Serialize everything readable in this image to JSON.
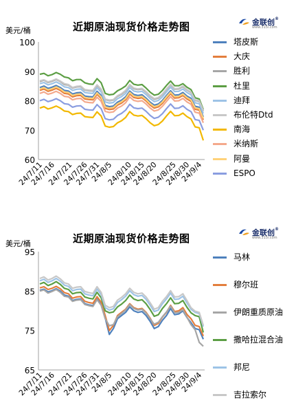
{
  "brand": {
    "name": "金联创",
    "registered": "®",
    "site": "www.315i.com"
  },
  "chart_data": [
    {
      "type": "line",
      "title": "近期原油现货价格走势图",
      "ylabel": "美元/桶",
      "ylim": [
        60,
        100
      ],
      "yticks": [
        60,
        70,
        80,
        90,
        100
      ],
      "grid": false,
      "legend_position": "right",
      "x": [
        "24/7/11",
        "24/7/12",
        "24/7/15",
        "24/7/16",
        "24/7/17",
        "24/7/18",
        "24/7/19",
        "24/7/22",
        "24/7/23",
        "24/7/24",
        "24/7/25",
        "24/7/26",
        "24/7/29",
        "24/7/30",
        "24/7/31",
        "24/8/1",
        "24/8/2",
        "24/8/5",
        "24/8/6",
        "24/8/7",
        "24/8/8",
        "24/8/9",
        "24/8/12",
        "24/8/13",
        "24/8/14",
        "24/8/15",
        "24/8/16",
        "24/8/19",
        "24/8/20",
        "24/8/21",
        "24/8/22",
        "24/8/23",
        "24/8/26",
        "24/8/27",
        "24/8/28",
        "24/8/29",
        "24/8/30",
        "24/9/2",
        "24/9/3",
        "24/9/4",
        "24/9/5"
      ],
      "x_tick_labels": [
        "24/7/11",
        "24/7/16",
        "24/7/21",
        "24/7/26",
        "24/7/31",
        "24/8/5",
        "24/8/10",
        "24/8/15",
        "24/8/20",
        "24/8/25",
        "24/8/30",
        "24/9/4"
      ],
      "series": [
        {
          "name": "塔皮斯",
          "color": "#4e81bd",
          "values": [
            84.5,
            85,
            84.2,
            84.6,
            85.2,
            84.5,
            83.5,
            83.3,
            82.3,
            82.7,
            82.8,
            81.6,
            81.4,
            81.3,
            83.2,
            81.8,
            78.4,
            78.0,
            78.2,
            79.5,
            80.2,
            81.3,
            83.3,
            82.1,
            81.8,
            82.0,
            80.9,
            79.5,
            78.5,
            78.9,
            80.1,
            81.8,
            83.4,
            81.9,
            82.0,
            82.8,
            81.6,
            80.8,
            78.1,
            77.8,
            74.5
          ]
        },
        {
          "name": "大庆",
          "color": "#e37e3d",
          "values": [
            83.5,
            84,
            83.2,
            83.6,
            84.2,
            83.5,
            82.5,
            82.3,
            81.3,
            81.7,
            81.8,
            80.6,
            80.4,
            80.3,
            82.2,
            80.8,
            77.4,
            77.0,
            77.2,
            78.5,
            79.2,
            80.3,
            82.3,
            81.1,
            80.8,
            81.0,
            79.9,
            78.5,
            77.5,
            77.9,
            79.1,
            80.8,
            82.4,
            80.9,
            81.0,
            81.8,
            80.6,
            79.8,
            77.1,
            76.8,
            73.5
          ]
        },
        {
          "name": "胜利",
          "color": "#a6a6a6",
          "values": [
            86.5,
            87,
            86.2,
            86.6,
            87.2,
            86.5,
            85.5,
            85.3,
            84.3,
            84.7,
            84.8,
            83.6,
            83.4,
            83.3,
            85.2,
            83.8,
            80.4,
            80.0,
            80.2,
            81.5,
            82.2,
            83.3,
            85.3,
            84.1,
            83.8,
            84.0,
            82.9,
            81.5,
            80.5,
            80.9,
            82.1,
            83.8,
            85.4,
            83.9,
            84.0,
            84.8,
            83.6,
            82.8,
            80.1,
            79.8,
            76.5
          ]
        },
        {
          "name": "杜里",
          "color": "#5c9e44",
          "values": [
            89,
            89.3,
            88.5,
            88.9,
            89.6,
            89.0,
            88.1,
            87.8,
            86.8,
            87.2,
            87.2,
            86.1,
            85.7,
            85.6,
            87.5,
            86.1,
            82.5,
            82.0,
            82.2,
            83.4,
            84.1,
            85.0,
            86.9,
            85.6,
            85.3,
            85.5,
            84.3,
            82.9,
            81.9,
            82.2,
            83.5,
            85.2,
            86.7,
            85.1,
            85.1,
            85.8,
            84.6,
            83.8,
            81.0,
            80.6,
            77.0
          ]
        },
        {
          "name": "迪拜",
          "color": "#9dc3e6",
          "values": [
            85.8,
            86.2,
            85.4,
            85.8,
            86.4,
            85.7,
            84.7,
            84.5,
            83.5,
            83.9,
            84.0,
            82.8,
            82.6,
            82.5,
            84.4,
            83.0,
            79.6,
            79.2,
            79.4,
            80.7,
            81.4,
            82.5,
            84.5,
            83.3,
            83.0,
            83.2,
            82.1,
            80.7,
            79.7,
            80.1,
            81.3,
            83.0,
            84.6,
            83.1,
            83.2,
            84.0,
            82.8,
            82.0,
            79.3,
            79.0,
            75.7
          ]
        },
        {
          "name": "布伦特Dtd",
          "color": "#c8c8c8",
          "values": [
            86.8,
            87.1,
            86.4,
            86.8,
            87.4,
            86.7,
            85.8,
            85.5,
            84.5,
            84.9,
            85.0,
            83.8,
            83.6,
            83.5,
            85.4,
            84.0,
            80.6,
            80.2,
            80.4,
            81.7,
            82.4,
            83.5,
            85.5,
            84.3,
            84.0,
            84.2,
            83.1,
            81.7,
            80.7,
            81.1,
            82.3,
            84.0,
            85.6,
            84.1,
            84.2,
            85.0,
            83.8,
            83.0,
            80.3,
            80.0,
            76.7
          ]
        },
        {
          "name": "南海",
          "color": "#f2b800",
          "values": [
            77.5,
            78,
            77.2,
            77.6,
            78.2,
            77.5,
            76.5,
            76.3,
            75.3,
            75.7,
            75.8,
            74.6,
            74.4,
            74.3,
            76.2,
            74.8,
            71.4,
            71.0,
            71.2,
            72.5,
            73.2,
            74.3,
            76.3,
            75.1,
            74.8,
            75.0,
            73.9,
            72.5,
            71.5,
            71.9,
            73.1,
            74.8,
            76.4,
            74.9,
            75.0,
            75.8,
            74.6,
            73.8,
            71.1,
            70.8,
            66.5
          ]
        },
        {
          "name": "米纳斯",
          "color": "#f4a98c",
          "values": [
            82.5,
            83,
            82.2,
            82.6,
            83.2,
            82.5,
            81.5,
            81.3,
            80.3,
            80.7,
            80.8,
            79.6,
            79.4,
            79.3,
            81.2,
            79.8,
            76.4,
            76.0,
            76.2,
            77.5,
            78.2,
            79.3,
            81.3,
            80.1,
            79.8,
            80.0,
            78.9,
            77.5,
            76.5,
            76.9,
            78.1,
            79.8,
            81.4,
            79.9,
            80.0,
            80.8,
            79.6,
            78.8,
            76.1,
            75.8,
            72.5
          ]
        },
        {
          "name": "阿曼",
          "color": "#ffd27a",
          "values": [
            84.0,
            84.5,
            83.7,
            84.1,
            84.7,
            84.0,
            83.0,
            82.8,
            81.8,
            82.2,
            82.3,
            81.1,
            80.9,
            80.8,
            82.7,
            81.3,
            77.9,
            77.5,
            77.7,
            79.0,
            79.7,
            80.8,
            82.8,
            81.6,
            81.3,
            81.5,
            80.4,
            79.0,
            78.0,
            78.4,
            79.6,
            81.3,
            82.9,
            81.4,
            81.5,
            82.3,
            81.1,
            80.3,
            77.6,
            77.3,
            74.0
          ]
        },
        {
          "name": "ESPO",
          "color": "#8a9de0",
          "values": [
            80.0,
            80.5,
            79.7,
            80.1,
            80.7,
            80.0,
            79.0,
            78.8,
            77.8,
            78.2,
            78.3,
            77.1,
            76.9,
            76.8,
            78.7,
            77.3,
            73.9,
            73.5,
            73.7,
            75.0,
            75.7,
            76.8,
            78.8,
            77.6,
            77.3,
            77.5,
            76.4,
            75.0,
            74.0,
            74.4,
            75.6,
            77.3,
            78.9,
            77.4,
            77.5,
            78.3,
            77.1,
            76.3,
            73.6,
            73.3,
            70.0
          ]
        }
      ]
    },
    {
      "type": "line",
      "title": "近期原油现货价格走势图",
      "ylabel": "美元/桶",
      "ylim": [
        65,
        95
      ],
      "yticks": [
        65,
        75,
        85,
        95
      ],
      "grid": false,
      "legend_position": "right",
      "x": [
        "24/7/11",
        "24/7/12",
        "24/7/15",
        "24/7/16",
        "24/7/17",
        "24/7/18",
        "24/7/19",
        "24/7/22",
        "24/7/23",
        "24/7/24",
        "24/7/25",
        "24/7/26",
        "24/7/29",
        "24/7/30",
        "24/7/31",
        "24/8/1",
        "24/8/2",
        "24/8/5",
        "24/8/6",
        "24/8/7",
        "24/8/8",
        "24/8/9",
        "24/8/12",
        "24/8/13",
        "24/8/14",
        "24/8/15",
        "24/8/16",
        "24/8/19",
        "24/8/20",
        "24/8/21",
        "24/8/22",
        "24/8/23",
        "24/8/26",
        "24/8/27",
        "24/8/28",
        "24/8/29",
        "24/8/30",
        "24/9/2",
        "24/9/3",
        "24/9/4",
        "24/9/5"
      ],
      "x_tick_labels": [
        "24/7/11",
        "24/7/16",
        "24/7/21",
        "24/7/26",
        "24/7/31",
        "24/8/5",
        "24/8/10",
        "24/8/15",
        "24/8/20",
        "24/8/25",
        "24/8/30",
        "24/9/4"
      ],
      "series": [
        {
          "name": "马林",
          "color": "#4e81bd",
          "values": [
            85.2,
            85.5,
            84.8,
            85.1,
            85.6,
            85.0,
            84.0,
            83.7,
            82.6,
            82.9,
            83.0,
            81.8,
            81.5,
            81.3,
            83.0,
            81.6,
            78.2,
            74.0,
            75.5,
            78.0,
            78.8,
            79.6,
            81.0,
            80.0,
            79.6,
            79.8,
            78.8,
            77.3,
            75.5,
            76.0,
            77.6,
            78.8,
            80.6,
            79.0,
            79.2,
            80.0,
            78.3,
            77.0,
            75.5,
            75.2,
            72.8
          ]
        },
        {
          "name": "穆尔班",
          "color": "#e37e3d",
          "values": [
            85.8,
            86.1,
            85.4,
            85.7,
            86.2,
            85.6,
            84.6,
            84.3,
            83.2,
            83.5,
            83.6,
            82.4,
            82.1,
            81.9,
            83.6,
            82.2,
            78.8,
            75.0,
            76.3,
            78.8,
            79.6,
            80.4,
            81.8,
            80.8,
            80.4,
            80.6,
            79.6,
            78.1,
            76.3,
            76.8,
            78.4,
            79.6,
            81.4,
            79.8,
            80.0,
            80.8,
            79.1,
            78.0,
            76.3,
            76.0,
            73.6
          ]
        },
        {
          "name": "伊朗重质原油",
          "color": "#a6a6a6",
          "values": [
            85.0,
            85.3,
            84.5,
            84.9,
            85.4,
            84.7,
            83.7,
            83.5,
            82.4,
            82.7,
            82.8,
            81.6,
            81.3,
            81.1,
            82.8,
            81.4,
            78.0,
            76.2,
            76.5,
            78.5,
            79.3,
            80.2,
            81.6,
            80.6,
            80.2,
            80.4,
            79.4,
            77.9,
            76.6,
            77.1,
            78.5,
            79.7,
            81.2,
            79.5,
            79.6,
            80.3,
            78.4,
            76.5,
            75.2,
            72.0,
            71.0
          ]
        },
        {
          "name": "撒哈拉混合油",
          "color": "#5c9e44",
          "values": [
            86.8,
            87.2,
            86.4,
            86.8,
            87.4,
            86.7,
            85.7,
            85.4,
            84.3,
            84.6,
            84.7,
            83.5,
            83.2,
            83.0,
            84.7,
            83.3,
            80.0,
            79.5,
            79.7,
            81.0,
            81.7,
            82.6,
            84.0,
            83.0,
            82.6,
            82.8,
            81.8,
            80.3,
            78.6,
            79.0,
            80.6,
            81.8,
            83.3,
            81.8,
            81.9,
            82.6,
            80.9,
            79.5,
            78.8,
            78.5,
            74.5
          ]
        },
        {
          "name": "邦尼",
          "color": "#9dc3e6",
          "values": [
            87.6,
            88.0,
            87.2,
            87.6,
            88.2,
            87.5,
            86.5,
            86.2,
            85.1,
            85.4,
            85.5,
            84.3,
            84.0,
            83.8,
            85.5,
            84.1,
            80.8,
            80.2,
            80.5,
            82.1,
            82.8,
            83.7,
            85.1,
            84.1,
            83.7,
            83.9,
            82.9,
            81.4,
            79.8,
            80.2,
            81.8,
            83.0,
            84.5,
            82.9,
            83.0,
            83.7,
            82.0,
            80.4,
            79.6,
            79.3,
            76.0
          ]
        },
        {
          "name": "吉拉索尔",
          "color": "#c8c8c8",
          "values": [
            88.2,
            88.6,
            87.8,
            88.2,
            88.8,
            88.1,
            87.1,
            86.8,
            85.7,
            86.0,
            86.1,
            84.9,
            84.6,
            84.4,
            86.1,
            84.7,
            81.4,
            80.8,
            81.1,
            82.7,
            83.4,
            84.3,
            85.7,
            84.7,
            84.3,
            84.5,
            83.5,
            82.0,
            80.4,
            80.8,
            82.4,
            83.6,
            85.1,
            83.5,
            83.6,
            84.3,
            82.6,
            80.8,
            79.9,
            79.6,
            76.3
          ]
        }
      ]
    }
  ]
}
